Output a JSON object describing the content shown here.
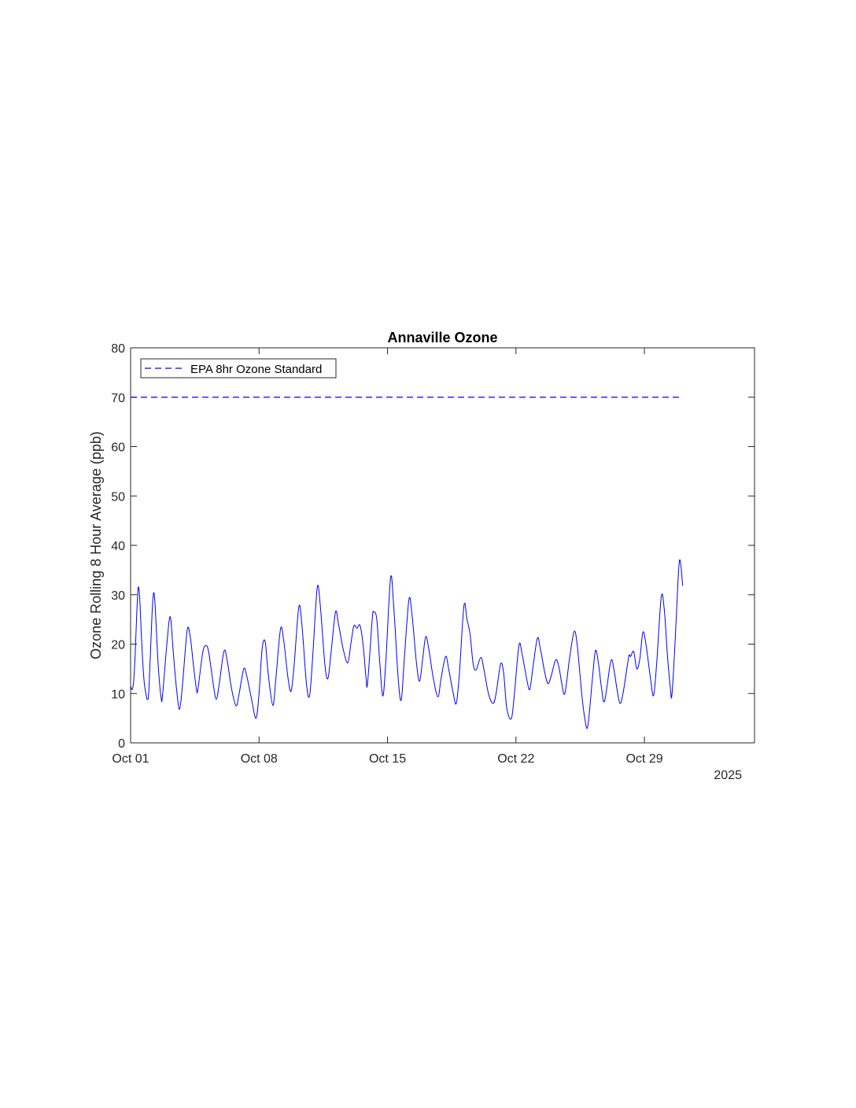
{
  "chart_data": {
    "type": "line",
    "title": "Annaville Ozone",
    "xlabel": "",
    "ylabel": "Ozone Rolling 8 Hour Average (ppb)",
    "x_axis": {
      "type": "date",
      "range": [
        "2025-10-01",
        "2025-11-04"
      ],
      "ticks": [
        {
          "date": "2025-10-01",
          "label": "Oct 01"
        },
        {
          "date": "2025-10-08",
          "label": "Oct 08"
        },
        {
          "date": "2025-10-15",
          "label": "Oct 15"
        },
        {
          "date": "2025-10-22",
          "label": "Oct 22"
        },
        {
          "date": "2025-10-29",
          "label": "Oct 29"
        }
      ],
      "secondary_label": "2025"
    },
    "ylim": [
      0,
      80
    ],
    "yticks": [
      0,
      10,
      20,
      30,
      40,
      50,
      60,
      70,
      80
    ],
    "grid": false,
    "legend": {
      "position": "top-left",
      "entries": [
        "EPA 8hr Ozone Standard"
      ]
    },
    "series": [
      {
        "style": "solid",
        "color": "#0000ff",
        "points": [
          [
            "2025-10-01 00:00",
            11.5
          ],
          [
            "2025-10-01 02:00",
            10.8
          ],
          [
            "2025-10-01 04:00",
            12.5
          ],
          [
            "2025-10-01 06:00",
            18
          ],
          [
            "2025-10-01 08:00",
            26
          ],
          [
            "2025-10-01 10:00",
            31.5
          ],
          [
            "2025-10-01 12:00",
            29
          ],
          [
            "2025-10-01 14:00",
            22
          ],
          [
            "2025-10-01 16:00",
            16
          ],
          [
            "2025-10-01 18:00",
            12
          ],
          [
            "2025-10-01 20:00",
            10
          ],
          [
            "2025-10-01 22:00",
            8.8
          ],
          [
            "2025-10-02 00:00",
            11
          ],
          [
            "2025-10-02 04:00",
            26
          ],
          [
            "2025-10-02 06:00",
            30.3
          ],
          [
            "2025-10-02 08:00",
            28
          ],
          [
            "2025-10-02 12:00",
            16
          ],
          [
            "2025-10-02 16:00",
            9
          ],
          [
            "2025-10-02 18:00",
            10
          ],
          [
            "2025-10-03 00:00",
            21
          ],
          [
            "2025-10-03 04:00",
            25.5
          ],
          [
            "2025-10-03 08:00",
            18
          ],
          [
            "2025-10-03 12:00",
            11
          ],
          [
            "2025-10-03 16:00",
            6.8
          ],
          [
            "2025-10-03 20:00",
            12
          ],
          [
            "2025-10-04 02:00",
            22.8
          ],
          [
            "2025-10-04 06:00",
            21.5
          ],
          [
            "2025-10-04 10:00",
            16
          ],
          [
            "2025-10-04 14:00",
            11
          ],
          [
            "2025-10-04 16:00",
            10.8
          ],
          [
            "2025-10-04 22:00",
            18
          ],
          [
            "2025-10-05 02:00",
            19.7
          ],
          [
            "2025-10-05 06:00",
            18.5
          ],
          [
            "2025-10-05 12:00",
            12
          ],
          [
            "2025-10-05 16:00",
            8.8
          ],
          [
            "2025-10-05 20:00",
            12
          ],
          [
            "2025-10-06 02:00",
            18.5
          ],
          [
            "2025-10-06 06:00",
            17
          ],
          [
            "2025-10-06 12:00",
            11
          ],
          [
            "2025-10-06 18:00",
            7.5
          ],
          [
            "2025-10-06 22:00",
            10
          ],
          [
            "2025-10-07 04:00",
            15
          ],
          [
            "2025-10-07 08:00",
            13.5
          ],
          [
            "2025-10-07 14:00",
            9
          ],
          [
            "2025-10-07 20:00",
            5
          ],
          [
            "2025-10-08 00:00",
            10
          ],
          [
            "2025-10-08 04:00",
            19
          ],
          [
            "2025-10-08 08:00",
            20.5
          ],
          [
            "2025-10-08 12:00",
            14
          ],
          [
            "2025-10-08 18:00",
            7.6
          ],
          [
            "2025-10-08 22:00",
            13
          ],
          [
            "2025-10-09 04:00",
            23
          ],
          [
            "2025-10-09 08:00",
            21
          ],
          [
            "2025-10-09 14:00",
            13
          ],
          [
            "2025-10-09 18:00",
            10.5
          ],
          [
            "2025-10-09 22:00",
            16
          ],
          [
            "2025-10-10 04:00",
            27.5
          ],
          [
            "2025-10-10 08:00",
            24
          ],
          [
            "2025-10-10 14:00",
            12
          ],
          [
            "2025-10-10 18:00",
            9.5
          ],
          [
            "2025-10-10 22:00",
            17
          ],
          [
            "2025-10-11 04:00",
            31.3
          ],
          [
            "2025-10-11 08:00",
            28
          ],
          [
            "2025-10-11 14:00",
            16
          ],
          [
            "2025-10-11 18:00",
            13
          ],
          [
            "2025-10-11 22:00",
            18
          ],
          [
            "2025-10-12 04:00",
            26.5
          ],
          [
            "2025-10-12 08:00",
            24
          ],
          [
            "2025-10-12 14:00",
            19
          ],
          [
            "2025-10-12 20:00",
            16.2
          ],
          [
            "2025-10-13 00:00",
            20
          ],
          [
            "2025-10-13 04:00",
            23.7
          ],
          [
            "2025-10-13 08:00",
            23.2
          ],
          [
            "2025-10-13 12:00",
            23.8
          ],
          [
            "2025-10-13 16:00",
            20
          ],
          [
            "2025-10-13 20:00",
            13
          ],
          [
            "2025-10-13 22:00",
            12.2
          ],
          [
            "2025-10-14 04:00",
            25
          ],
          [
            "2025-10-14 06:00",
            26.5
          ],
          [
            "2025-10-14 10:00",
            25
          ],
          [
            "2025-10-14 14:00",
            16
          ],
          [
            "2025-10-14 18:00",
            9.5
          ],
          [
            "2025-10-14 22:00",
            17
          ],
          [
            "2025-10-15 04:00",
            33.4
          ],
          [
            "2025-10-15 08:00",
            28
          ],
          [
            "2025-10-15 14:00",
            13
          ],
          [
            "2025-10-15 18:00",
            8.7
          ],
          [
            "2025-10-15 22:00",
            17
          ],
          [
            "2025-10-16 04:00",
            29
          ],
          [
            "2025-10-16 08:00",
            26
          ],
          [
            "2025-10-16 14:00",
            16
          ],
          [
            "2025-10-16 18:00",
            12.5
          ],
          [
            "2025-10-16 22:00",
            17
          ],
          [
            "2025-10-17 02:00",
            21.5
          ],
          [
            "2025-10-17 06:00",
            19
          ],
          [
            "2025-10-17 12:00",
            13
          ],
          [
            "2025-10-17 18:00",
            9.3
          ],
          [
            "2025-10-17 22:00",
            13
          ],
          [
            "2025-10-18 04:00",
            17.5
          ],
          [
            "2025-10-18 08:00",
            15
          ],
          [
            "2025-10-18 14:00",
            10
          ],
          [
            "2025-10-18 18:00",
            8
          ],
          [
            "2025-10-18 22:00",
            14
          ],
          [
            "2025-10-19 04:00",
            27.8
          ],
          [
            "2025-10-19 08:00",
            25
          ],
          [
            "2025-10-19 12:00",
            22
          ],
          [
            "2025-10-19 16:00",
            16
          ],
          [
            "2025-10-19 20:00",
            14.8
          ],
          [
            "2025-10-20 02:00",
            17.3
          ],
          [
            "2025-10-20 06:00",
            15
          ],
          [
            "2025-10-20 12:00",
            10
          ],
          [
            "2025-10-20 18:00",
            8
          ],
          [
            "2025-10-20 22:00",
            10
          ],
          [
            "2025-10-21 04:00",
            16
          ],
          [
            "2025-10-21 08:00",
            14
          ],
          [
            "2025-10-21 12:00",
            7
          ],
          [
            "2025-10-21 18:00",
            4.9
          ],
          [
            "2025-10-21 22:00",
            10
          ],
          [
            "2025-10-22 04:00",
            19.8
          ],
          [
            "2025-10-22 08:00",
            18
          ],
          [
            "2025-10-22 14:00",
            13
          ],
          [
            "2025-10-22 18:00",
            10.8
          ],
          [
            "2025-10-22 22:00",
            15
          ],
          [
            "2025-10-23 04:00",
            21.2
          ],
          [
            "2025-10-23 08:00",
            19
          ],
          [
            "2025-10-23 14:00",
            14
          ],
          [
            "2025-10-23 18:00",
            12
          ],
          [
            "2025-10-23 22:00",
            13.5
          ],
          [
            "2025-10-24 04:00",
            16.8
          ],
          [
            "2025-10-24 08:00",
            15.5
          ],
          [
            "2025-10-24 12:00",
            12
          ],
          [
            "2025-10-24 16:00",
            10
          ],
          [
            "2025-10-24 22:00",
            17
          ],
          [
            "2025-10-25 04:00",
            22.5
          ],
          [
            "2025-10-25 08:00",
            20
          ],
          [
            "2025-10-25 14:00",
            10
          ],
          [
            "2025-10-25 18:00",
            5
          ],
          [
            "2025-10-25 22:00",
            3.4
          ],
          [
            "2025-10-26 04:00",
            13
          ],
          [
            "2025-10-26 08:00",
            18.7
          ],
          [
            "2025-10-26 12:00",
            16
          ],
          [
            "2025-10-26 16:00",
            11
          ],
          [
            "2025-10-26 20:00",
            8.5
          ],
          [
            "2025-10-27 04:00",
            16.5
          ],
          [
            "2025-10-27 08:00",
            15
          ],
          [
            "2025-10-27 12:00",
            11
          ],
          [
            "2025-10-27 16:00",
            8
          ],
          [
            "2025-10-27 20:00",
            10
          ],
          [
            "2025-10-28 02:00",
            16
          ],
          [
            "2025-10-28 04:00",
            17.8
          ],
          [
            "2025-10-28 06:00",
            17.5
          ],
          [
            "2025-10-28 10:00",
            18.5
          ],
          [
            "2025-10-28 14:00",
            15
          ],
          [
            "2025-10-28 18:00",
            17
          ],
          [
            "2025-10-28 22:00",
            22.4
          ],
          [
            "2025-10-29 02:00",
            20
          ],
          [
            "2025-10-29 08:00",
            13
          ],
          [
            "2025-10-29 12:00",
            9.6
          ],
          [
            "2025-10-29 16:00",
            16
          ],
          [
            "2025-10-29 22:00",
            29.5
          ],
          [
            "2025-10-30 02:00",
            27
          ],
          [
            "2025-10-30 06:00",
            18
          ],
          [
            "2025-10-30 10:00",
            11
          ],
          [
            "2025-10-30 12:00",
            9.7
          ],
          [
            "2025-10-30 16:00",
            20
          ],
          [
            "2025-10-30 20:00",
            33
          ],
          [
            "2025-10-30 22:00",
            37
          ],
          [
            "2025-10-31 00:00",
            35.5
          ],
          [
            "2025-10-31 02:00",
            31.8
          ]
        ]
      },
      {
        "name": "EPA 8hr Ozone Standard",
        "style": "dashed",
        "color": "#0000ff",
        "points": [
          [
            "2025-10-01 00:00",
            70
          ],
          [
            "2025-10-31 02:00",
            70
          ]
        ]
      }
    ]
  }
}
